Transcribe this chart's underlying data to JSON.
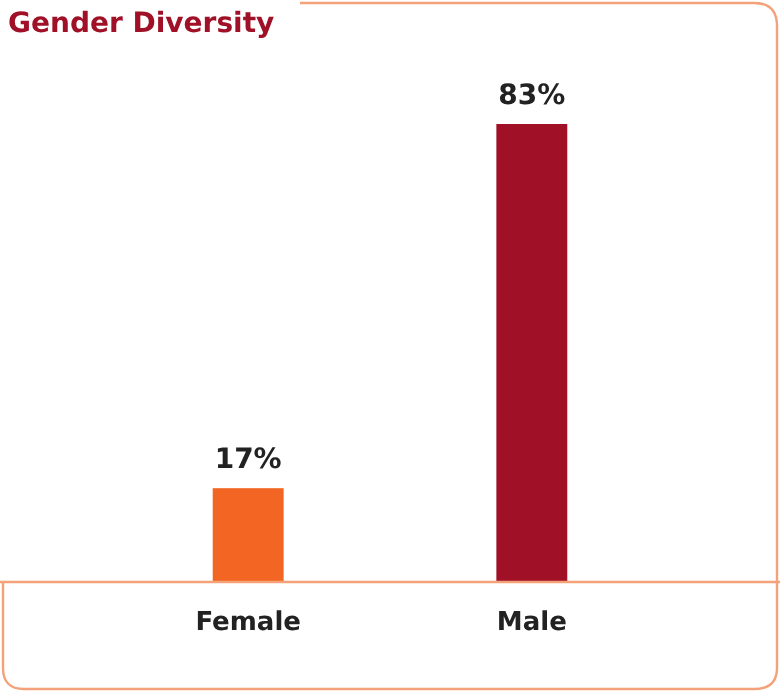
{
  "chart_data": {
    "type": "bar",
    "title": "Gender Diversity",
    "categories": [
      "Female",
      "Male"
    ],
    "values": [
      17,
      83
    ],
    "colors": [
      "#f26522",
      "#a01127"
    ],
    "value_labels": [
      "17%",
      "83%"
    ]
  }
}
